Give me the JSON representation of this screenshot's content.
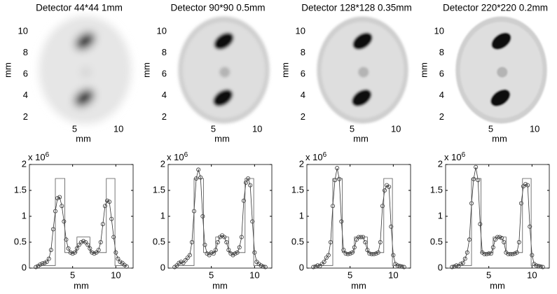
{
  "chart_data": [
    {
      "type": "image",
      "title": "Detector 44*44 1mm",
      "xlabel": "mm",
      "ylabel": "mm",
      "xlim": [
        0.5,
        11.5
      ],
      "ylim": [
        1.5,
        11.5
      ],
      "xticks": [
        5,
        10
      ],
      "yticks": [
        2,
        4,
        6,
        8,
        10
      ]
    },
    {
      "type": "image",
      "title": "Detector 90*90 0.5mm",
      "xlabel": "mm",
      "ylabel": "mm",
      "xlim": [
        0.5,
        11.5
      ],
      "ylim": [
        1.5,
        11.5
      ],
      "xticks": [
        5,
        10
      ],
      "yticks": [
        2,
        4,
        6,
        8,
        10
      ]
    },
    {
      "type": "image",
      "title": "Detector 128*128 0.35mm",
      "xlabel": "mm",
      "ylabel": "mm",
      "xlim": [
        0.5,
        11.5
      ],
      "ylim": [
        1.5,
        11.5
      ],
      "xticks": [
        5,
        10
      ],
      "yticks": [
        2,
        4,
        6,
        8,
        10
      ]
    },
    {
      "type": "image",
      "title": "Detector 220*220 0.2mm",
      "xlabel": "mm",
      "ylabel": "mm",
      "xlim": [
        0.5,
        11.5
      ],
      "ylim": [
        1.5,
        11.5
      ],
      "xticks": [
        5,
        10
      ],
      "yticks": [
        2,
        4,
        6,
        8,
        10
      ]
    },
    {
      "type": "line",
      "xlabel": "mm",
      "y_multiplier": {
        "base": "x 10",
        "exponent": "6"
      },
      "xlim": [
        0,
        12
      ],
      "ylim": [
        0,
        2
      ],
      "xticks": [
        5,
        10
      ],
      "yticks": [
        0,
        0.5,
        1,
        1.5,
        2
      ],
      "series": [
        {
          "color": "#333333",
          "marker": "circle",
          "x": [
            0.75,
            1,
            1.25,
            1.5,
            1.75,
            2,
            2.25,
            2.5,
            2.75,
            3,
            3.25,
            3.5,
            3.75,
            4,
            4.25,
            4.5,
            4.75,
            5,
            5.25,
            5.5,
            5.75,
            6,
            6.25,
            6.5,
            6.75,
            7,
            7.25,
            7.5,
            7.75,
            8,
            8.25,
            8.5,
            8.75,
            9,
            9.25,
            9.5,
            9.75,
            10,
            10.25,
            10.5,
            10.75,
            11,
            11.25
          ],
          "values": [
            0.02,
            0.04,
            0.07,
            0.09,
            0.1,
            0.12,
            0.18,
            0.35,
            0.75,
            1.1,
            1.35,
            1.37,
            1.2,
            0.9,
            0.55,
            0.38,
            0.3,
            0.28,
            0.3,
            0.38,
            0.45,
            0.5,
            0.52,
            0.5,
            0.45,
            0.38,
            0.3,
            0.28,
            0.3,
            0.35,
            0.5,
            0.85,
            1.2,
            1.3,
            1.28,
            0.95,
            0.6,
            0.3,
            0.18,
            0.12,
            0.1,
            0.06,
            0.03
          ]
        },
        {
          "color": "#555555",
          "x": [
            0.75,
            3,
            3,
            4.1,
            4.1,
            5.5,
            5.5,
            7,
            7,
            8.9,
            8.9,
            9.9,
            9.9,
            11.25
          ],
          "values": [
            0.05,
            0.05,
            1.73,
            1.73,
            0.3,
            0.3,
            0.6,
            0.6,
            0.3,
            0.3,
            1.73,
            1.73,
            0.05,
            0.05
          ]
        }
      ]
    },
    {
      "type": "line",
      "xlabel": "mm",
      "y_multiplier": {
        "base": "x 10",
        "exponent": "6"
      },
      "xlim": [
        0,
        12
      ],
      "ylim": [
        0,
        2
      ],
      "xticks": [
        5,
        10
      ],
      "yticks": [
        0,
        0.5,
        1,
        1.5,
        2
      ],
      "series": [
        {
          "color": "#333333",
          "marker": "circle",
          "x": [
            0.75,
            1,
            1.25,
            1.5,
            1.75,
            2,
            2.25,
            2.5,
            2.75,
            3,
            3.25,
            3.5,
            3.75,
            4,
            4.25,
            4.5,
            4.75,
            5,
            5.25,
            5.5,
            5.75,
            6,
            6.25,
            6.5,
            6.75,
            7,
            7.25,
            7.5,
            7.75,
            8,
            8.25,
            8.5,
            8.75,
            9,
            9.25,
            9.5,
            9.75,
            10,
            10.25,
            10.5,
            10.75,
            11,
            11.25
          ],
          "values": [
            0.02,
            0.05,
            0.1,
            0.12,
            0.1,
            0.15,
            0.2,
            0.25,
            0.5,
            1.1,
            1.73,
            1.9,
            1.75,
            1.0,
            0.45,
            0.28,
            0.25,
            0.3,
            0.28,
            0.35,
            0.5,
            0.6,
            0.63,
            0.6,
            0.5,
            0.35,
            0.28,
            0.25,
            0.28,
            0.3,
            0.4,
            0.6,
            1.3,
            1.65,
            1.73,
            1.6,
            0.9,
            0.3,
            0.12,
            0.08,
            0.05,
            0.03,
            0.02
          ]
        },
        {
          "color": "#555555",
          "x": [
            0.75,
            3,
            3,
            4.1,
            4.1,
            5.5,
            5.5,
            7,
            7,
            8.9,
            8.9,
            9.9,
            9.9,
            11.25
          ],
          "values": [
            0.05,
            0.05,
            1.73,
            1.73,
            0.3,
            0.3,
            0.6,
            0.6,
            0.3,
            0.3,
            1.73,
            1.73,
            0.05,
            0.05
          ]
        }
      ]
    },
    {
      "type": "line",
      "xlabel": "mm",
      "y_multiplier": {
        "base": "x 10",
        "exponent": "6"
      },
      "xlim": [
        0,
        12
      ],
      "ylim": [
        0,
        2
      ],
      "xticks": [
        5,
        10
      ],
      "yticks": [
        0,
        0.5,
        1,
        1.5,
        2
      ],
      "series": [
        {
          "color": "#333333",
          "marker": "circle",
          "x": [
            0.75,
            1,
            1.25,
            1.5,
            1.75,
            2,
            2.25,
            2.5,
            2.75,
            3,
            3.25,
            3.5,
            3.75,
            4,
            4.25,
            4.5,
            4.75,
            5,
            5.25,
            5.5,
            5.75,
            6,
            6.25,
            6.5,
            6.75,
            7,
            7.25,
            7.5,
            7.75,
            8,
            8.25,
            8.5,
            8.75,
            9,
            9.25,
            9.5,
            9.75,
            10,
            10.25,
            10.5,
            10.75,
            11,
            11.25
          ],
          "values": [
            0.02,
            0.03,
            0.05,
            0.04,
            0.08,
            0.12,
            0.2,
            0.25,
            0.5,
            1.2,
            1.7,
            1.93,
            1.72,
            0.9,
            0.35,
            0.28,
            0.27,
            0.28,
            0.3,
            0.4,
            0.55,
            0.6,
            0.6,
            0.6,
            0.5,
            0.35,
            0.28,
            0.27,
            0.27,
            0.28,
            0.3,
            0.5,
            1.2,
            1.5,
            1.6,
            1.57,
            0.8,
            0.25,
            0.08,
            0.05,
            0.04,
            0.03,
            0.02
          ]
        },
        {
          "color": "#555555",
          "x": [
            0.75,
            3,
            3,
            4.1,
            4.1,
            5.5,
            5.5,
            7,
            7,
            8.9,
            8.9,
            9.9,
            9.9,
            11.25
          ],
          "values": [
            0.05,
            0.05,
            1.73,
            1.73,
            0.3,
            0.3,
            0.6,
            0.6,
            0.3,
            0.3,
            1.73,
            1.73,
            0.05,
            0.05
          ]
        }
      ]
    },
    {
      "type": "line",
      "xlabel": "mm",
      "y_multiplier": {
        "base": "x 10",
        "exponent": "6"
      },
      "xlim": [
        0,
        12
      ],
      "ylim": [
        0,
        2
      ],
      "xticks": [
        5,
        10
      ],
      "yticks": [
        0,
        0.5,
        1,
        1.5,
        2
      ],
      "series": [
        {
          "color": "#333333",
          "marker": "circle",
          "x": [
            0.75,
            1,
            1.25,
            1.5,
            1.75,
            2,
            2.25,
            2.5,
            2.75,
            3,
            3.25,
            3.5,
            3.75,
            4,
            4.25,
            4.5,
            4.75,
            5,
            5.25,
            5.5,
            5.75,
            6,
            6.25,
            6.5,
            6.75,
            7,
            7.25,
            7.5,
            7.75,
            8,
            8.25,
            8.5,
            8.75,
            9,
            9.25,
            9.5,
            9.75,
            10,
            10.25,
            10.5,
            10.75,
            11,
            11.25
          ],
          "values": [
            0.02,
            0.03,
            0.05,
            0.04,
            0.08,
            0.1,
            0.18,
            0.3,
            0.55,
            1.25,
            1.72,
            1.95,
            1.7,
            0.85,
            0.3,
            0.27,
            0.27,
            0.28,
            0.28,
            0.4,
            0.55,
            0.6,
            0.6,
            0.58,
            0.5,
            0.3,
            0.27,
            0.27,
            0.27,
            0.28,
            0.3,
            0.5,
            1.25,
            1.58,
            1.62,
            1.6,
            0.8,
            0.25,
            0.08,
            0.05,
            0.04,
            0.03,
            0.02
          ]
        },
        {
          "color": "#555555",
          "x": [
            0.75,
            3,
            3,
            4.1,
            4.1,
            5.5,
            5.5,
            7,
            7,
            8.9,
            8.9,
            9.9,
            9.9,
            11.25
          ],
          "values": [
            0.05,
            0.05,
            1.73,
            1.73,
            0.3,
            0.3,
            0.6,
            0.6,
            0.3,
            0.3,
            1.73,
            1.73,
            0.05,
            0.05
          ]
        }
      ]
    }
  ]
}
